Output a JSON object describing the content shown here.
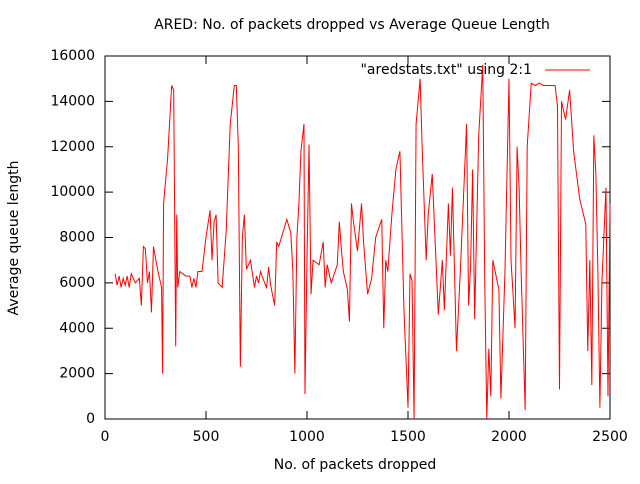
{
  "chart_data": {
    "type": "line",
    "title": "ARED: No. of packets dropped vs Average Queue Length",
    "x_label": "No. of packets dropped",
    "y_label": "Average queue length",
    "xlim": [
      0,
      2500
    ],
    "xticks": [
      0,
      500,
      1000,
      1500,
      2000,
      2500
    ],
    "ylim": [
      0,
      16000
    ],
    "yticks": [
      0,
      2000,
      4000,
      6000,
      8000,
      10000,
      12000,
      14000,
      16000
    ],
    "legend_position": "top-right",
    "series": [
      {
        "name": "\"aredstats.txt\" using 2:1",
        "color": "#ff0000",
        "x": [
          50,
          60,
          70,
          80,
          90,
          100,
          110,
          120,
          130,
          150,
          170,
          180,
          190,
          200,
          210,
          220,
          230,
          240,
          260,
          280,
          285,
          290,
          310,
          330,
          340,
          350,
          355,
          360,
          370,
          400,
          420,
          430,
          440,
          450,
          460,
          480,
          500,
          520,
          530,
          540,
          550,
          560,
          580,
          600,
          620,
          640,
          650,
          660,
          670,
          680,
          690,
          700,
          720,
          740,
          750,
          760,
          770,
          790,
          800,
          810,
          820,
          840,
          850,
          860,
          880,
          900,
          920,
          930,
          940,
          950,
          960,
          970,
          985,
          990,
          1000,
          1010,
          1020,
          1030,
          1060,
          1080,
          1090,
          1100,
          1120,
          1150,
          1160,
          1170,
          1180,
          1200,
          1210,
          1220,
          1230,
          1250,
          1270,
          1280,
          1300,
          1320,
          1340,
          1370,
          1380,
          1390,
          1400,
          1420,
          1440,
          1460,
          1480,
          1500,
          1510,
          1520,
          1530,
          1540,
          1560,
          1570,
          1590,
          1600,
          1620,
          1650,
          1670,
          1680,
          1700,
          1710,
          1720,
          1740,
          1760,
          1790,
          1800,
          1810,
          1820,
          1830,
          1850,
          1870,
          1880,
          1890,
          1900,
          1910,
          1920,
          1950,
          1960,
          1980,
          2000,
          2010,
          2030,
          2040,
          2050,
          2060,
          2080,
          2090,
          2110,
          2130,
          2150,
          2170,
          2200,
          2228,
          2240,
          2250,
          2260,
          2280,
          2300,
          2320,
          2350,
          2380,
          2390,
          2400,
          2410,
          2420,
          2430,
          2440,
          2450,
          2460,
          2480,
          2490,
          2500
        ],
        "values": [
          6400,
          5900,
          6300,
          5800,
          6200,
          5900,
          6300,
          5800,
          6400,
          6000,
          6200,
          5000,
          7600,
          7500,
          6000,
          6500,
          4700,
          7600,
          6600,
          5800,
          2000,
          9500,
          11500,
          14700,
          14500,
          3200,
          9000,
          5800,
          6500,
          6300,
          6300,
          5800,
          6200,
          5800,
          6500,
          6500,
          8000,
          9200,
          7000,
          8700,
          9000,
          6000,
          5800,
          8300,
          13000,
          14700,
          14700,
          12000,
          2300,
          8000,
          9000,
          6600,
          7000,
          5800,
          6300,
          6000,
          6500,
          6000,
          5800,
          6700,
          5900,
          5000,
          7800,
          7600,
          8200,
          8800,
          8200,
          6500,
          2000,
          8000,
          9500,
          11800,
          13000,
          1100,
          7000,
          12100,
          5500,
          7000,
          6800,
          7800,
          5800,
          6800,
          6000,
          6800,
          8700,
          7500,
          6500,
          5700,
          4300,
          9500,
          8700,
          7400,
          9500,
          7800,
          5500,
          6200,
          8000,
          8800,
          4000,
          7000,
          6500,
          9000,
          11000,
          11800,
          4800,
          500,
          6400,
          6100,
          0,
          13000,
          15000,
          12000,
          7000,
          9000,
          10800,
          4600,
          7000,
          4800,
          9500,
          7200,
          10200,
          3000,
          6700,
          13000,
          5000,
          6800,
          11000,
          4400,
          12500,
          15600,
          6000,
          0,
          3100,
          1000,
          7000,
          5700,
          900,
          6500,
          15000,
          7000,
          4000,
          12000,
          10200,
          6500,
          400,
          12000,
          14800,
          14700,
          14800,
          14700,
          14700,
          14700,
          13800,
          1300,
          14000,
          13200,
          14500,
          11800,
          9700,
          8600,
          3000,
          7000,
          1500,
          12500,
          10800,
          6500,
          500,
          6000,
          10200,
          1000,
          9500
        ]
      }
    ]
  }
}
